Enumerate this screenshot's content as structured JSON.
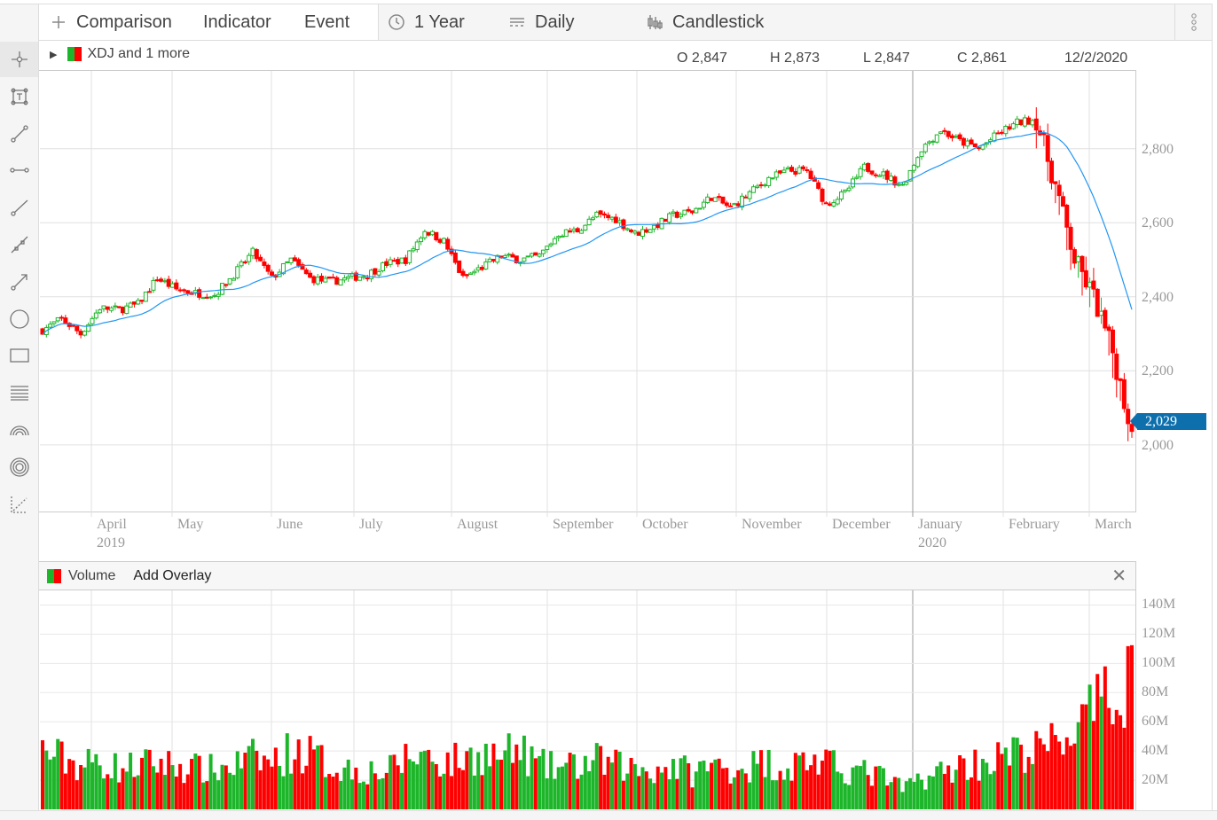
{
  "toolbar": {
    "comparison": "Comparison",
    "indicator": "Indicator",
    "event": "Event",
    "range": "1 Year",
    "interval": "Daily",
    "chart_type": "Candlestick"
  },
  "sidebar": {
    "tools": [
      "crosshair-icon",
      "text-annotation-icon",
      "segment-icon",
      "horizontal-segment-icon",
      "ray-icon",
      "continuous-line-icon",
      "arrow-icon",
      "circle-icon",
      "rectangle-icon",
      "fibonacci-retracement-icon",
      "fibonacci-arc-icon",
      "fibonacci-circle-icon",
      "scatter-trend-icon"
    ]
  },
  "legend": {
    "label": "XDJ and 1 more"
  },
  "ohlc": {
    "open": "O 2,847",
    "high": "H 2,873",
    "low": "L 2,847",
    "close": "C 2,861",
    "date": "12/2/2020"
  },
  "last_price": "2,029",
  "volume_panel": {
    "title": "Volume",
    "add_overlay": "Add Overlay"
  },
  "colors": {
    "up": "#1db62a",
    "down": "#ff0000",
    "ma": "#2196f3",
    "tag": "#0d70ad"
  },
  "chart_data": {
    "type": "candlestick",
    "x_labels": [
      {
        "m": "April",
        "y": "2019"
      },
      {
        "m": "May"
      },
      {
        "m": "June"
      },
      {
        "m": "July"
      },
      {
        "m": "August"
      },
      {
        "m": "September"
      },
      {
        "m": "October"
      },
      {
        "m": "November"
      },
      {
        "m": "December"
      },
      {
        "m": "January",
        "y": "2020"
      },
      {
        "m": "February"
      },
      {
        "m": "March"
      }
    ],
    "y_ticks": [
      "2,000",
      "2,200",
      "2,400",
      "2,600",
      "2,800"
    ],
    "y_values": [
      2000,
      2200,
      2400,
      2600,
      2800
    ],
    "ylim": [
      1820,
      3010
    ],
    "weekly_close": [
      2310,
      2340,
      2300,
      2370,
      2365,
      2380,
      2450,
      2420,
      2410,
      2405,
      2460,
      2520,
      2450,
      2500,
      2450,
      2440,
      2450,
      2460,
      2490,
      2500,
      2580,
      2550,
      2450,
      2480,
      2510,
      2500,
      2510,
      2570,
      2580,
      2620,
      2610,
      2570,
      2590,
      2620,
      2630,
      2670,
      2640,
      2680,
      2720,
      2740,
      2740,
      2650,
      2680,
      2750,
      2730,
      2700,
      2800,
      2850,
      2820,
      2800,
      2840,
      2870,
      2880,
      2700,
      2500,
      2400,
      2250,
      2029
    ],
    "volume": {
      "y_ticks": [
        "20M",
        "40M",
        "60M",
        "80M",
        "100M",
        "120M",
        "140M"
      ],
      "y_values": [
        20,
        40,
        60,
        80,
        100,
        120,
        140
      ],
      "ylim": [
        0,
        150
      ],
      "weekly_avg_millions": [
        40,
        35,
        30,
        33,
        28,
        30,
        32,
        30,
        28,
        27,
        30,
        35,
        32,
        40,
        38,
        30,
        28,
        27,
        25,
        35,
        38,
        32,
        34,
        38,
        36,
        40,
        30,
        28,
        30,
        33,
        30,
        28,
        27,
        30,
        25,
        30,
        28,
        30,
        32,
        28,
        35,
        30,
        28,
        25,
        22,
        14,
        22,
        25,
        30,
        32,
        35,
        38,
        40,
        45,
        55,
        65,
        75,
        100
      ]
    }
  }
}
